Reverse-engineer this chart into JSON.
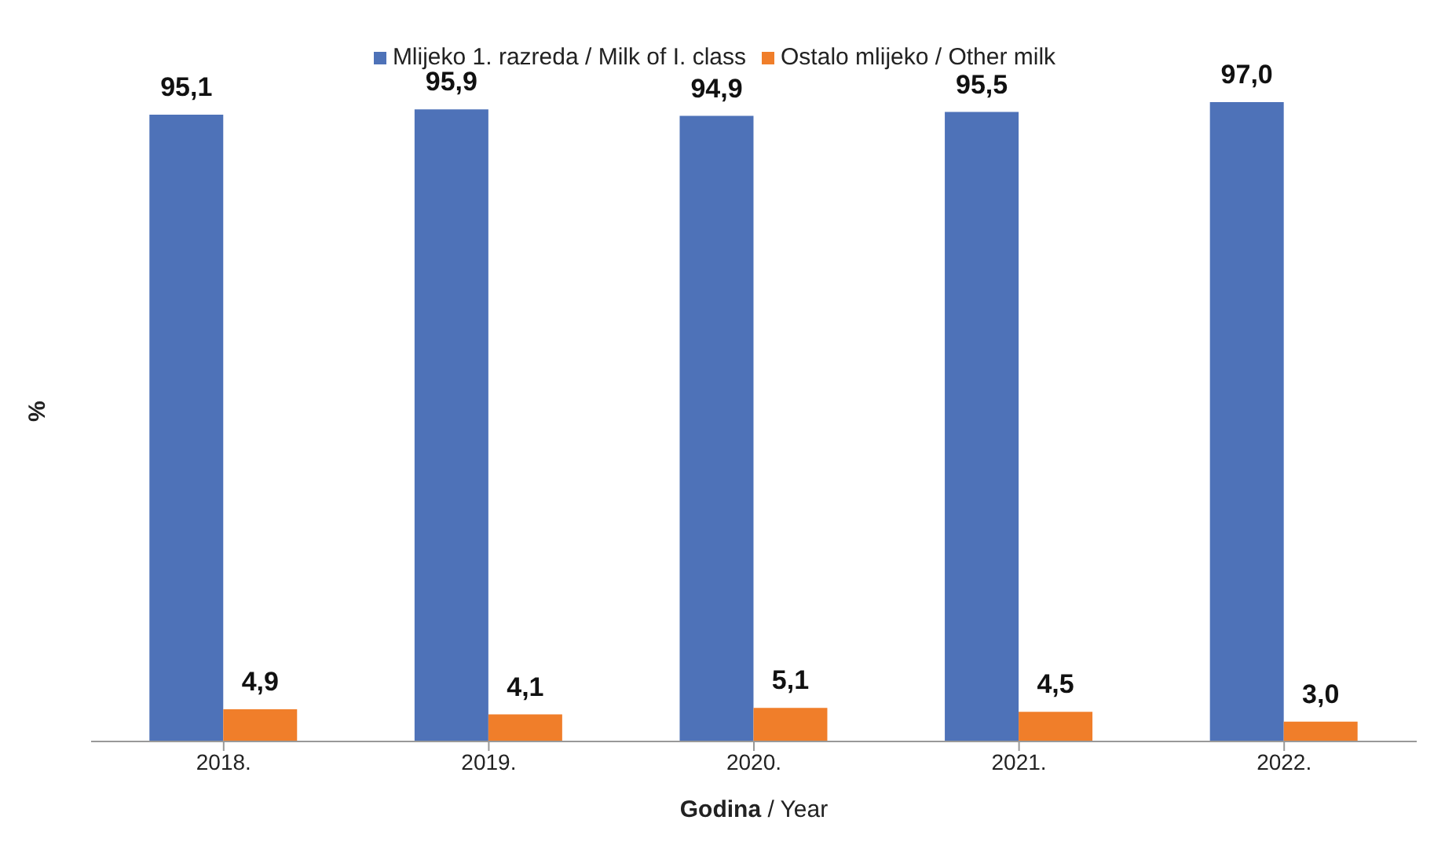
{
  "chart_data": {
    "type": "bar",
    "xlabel": "Godina / Year",
    "ylabel": "%",
    "categories": [
      "2018.",
      "2019.",
      "2020.",
      "2021.",
      "2022."
    ],
    "series": [
      {
        "name": "Mlijeko 1. razreda / Milk of I. class",
        "color": "#4e72b8",
        "values": [
          95.1,
          95.9,
          94.9,
          95.5,
          97.0
        ],
        "value_labels": [
          "95,1",
          "95,9",
          "94,9",
          "95,5",
          "97,0"
        ]
      },
      {
        "name": "Ostalo mlijeko / Other milk",
        "color": "#f07e2a",
        "values": [
          4.9,
          4.1,
          5.1,
          4.5,
          3.0
        ],
        "value_labels": [
          "4,9",
          "4,1",
          "5,1",
          "4,5",
          "3,0"
        ]
      }
    ],
    "legend": "top",
    "tick_labels": "x"
  }
}
